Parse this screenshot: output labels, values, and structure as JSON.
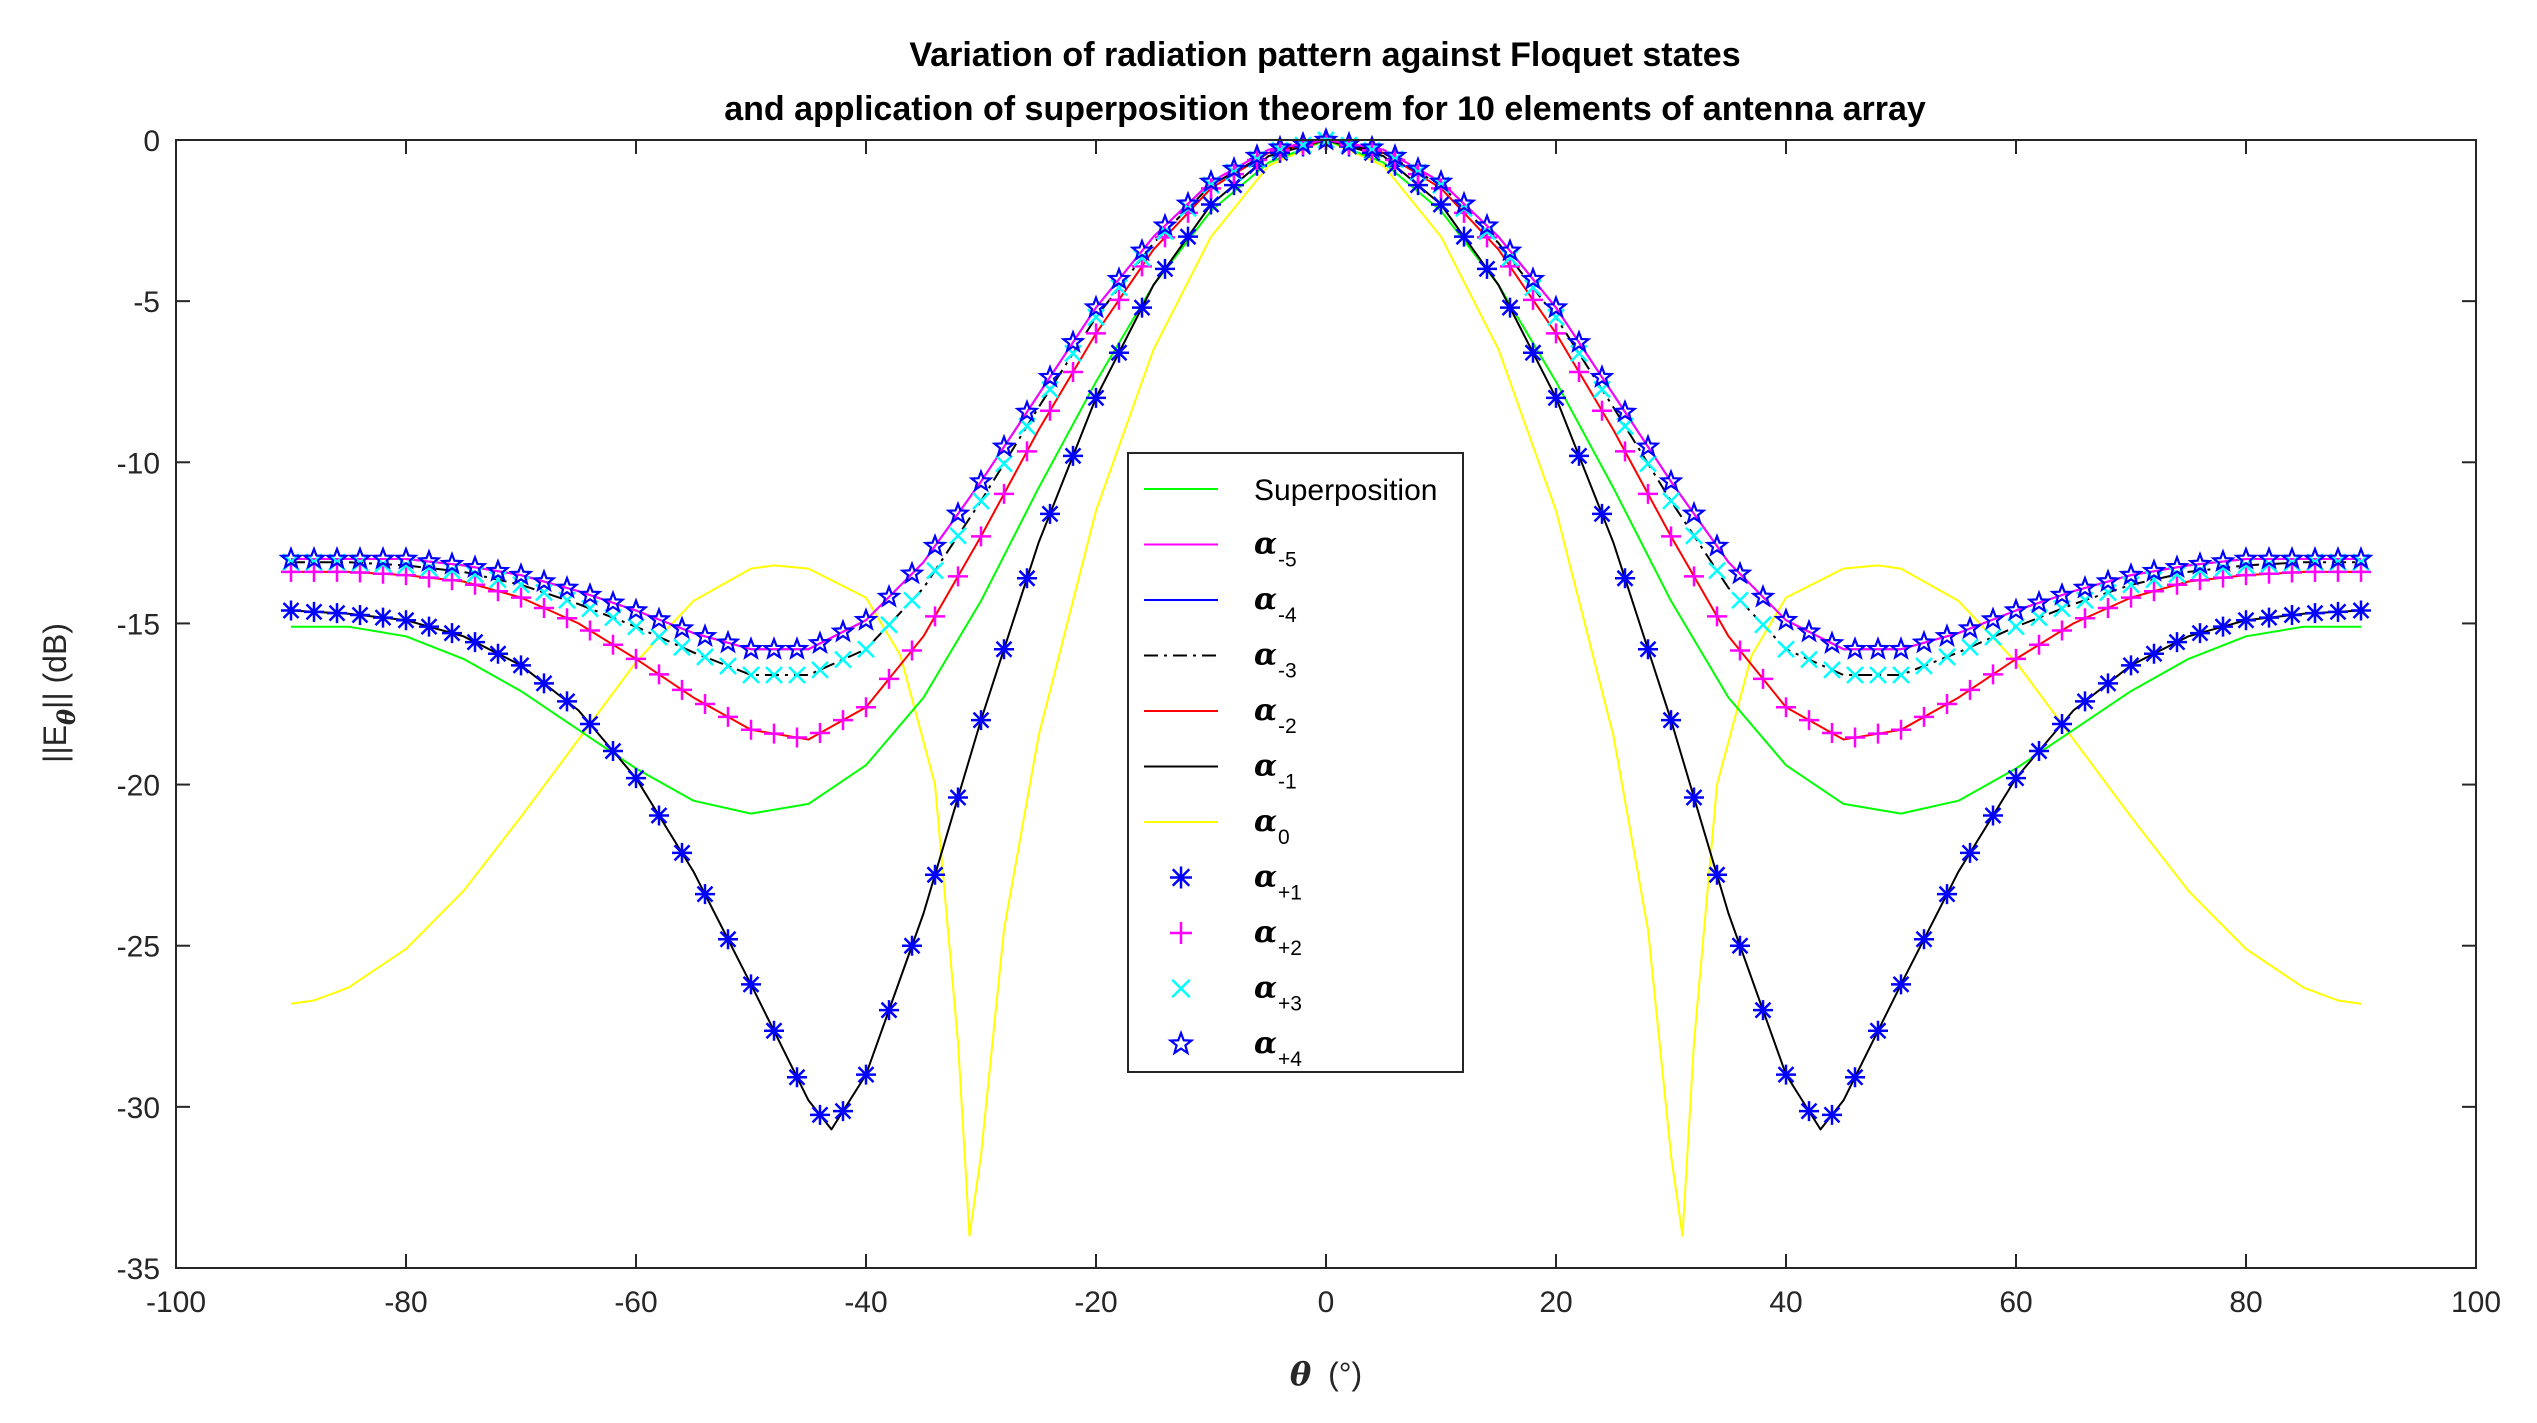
{
  "chart_data": {
    "type": "line",
    "title": [
      "Variation of radiation pattern against Floquet states",
      "and application of superposition theorem for 10 elements of antenna array"
    ],
    "xlabel": {
      "symbol": "θ",
      "unit": "(°)"
    },
    "ylabel": {
      "prefix": "||E",
      "subscript": "θ",
      "suffix": "|| (dB)"
    },
    "xlim": [
      -100,
      100
    ],
    "ylim": [
      -35,
      0
    ],
    "xticks": [
      -100,
      -80,
      -60,
      -40,
      -20,
      0,
      20,
      40,
      60,
      80,
      100
    ],
    "yticks": [
      0,
      -5,
      -10,
      -15,
      -20,
      -25,
      -30,
      -35
    ],
    "grid": false,
    "legend_position": "center",
    "series": [
      {
        "name": "Superposition",
        "label_type": "text",
        "color": "#00ff00",
        "style": "solid",
        "marker": "none",
        "points": [
          [
            0,
            0
          ],
          [
            5,
            -0.7
          ],
          [
            10,
            -2.2
          ],
          [
            15,
            -4.5
          ],
          [
            20,
            -7.5
          ],
          [
            25,
            -10.8
          ],
          [
            30,
            -14.3
          ],
          [
            35,
            -17.3
          ],
          [
            40,
            -19.4
          ],
          [
            45,
            -20.6
          ],
          [
            50,
            -20.9
          ],
          [
            55,
            -20.5
          ],
          [
            60,
            -19.5
          ],
          [
            65,
            -18.3
          ],
          [
            70,
            -17.1
          ],
          [
            75,
            -16.1
          ],
          [
            80,
            -15.4
          ],
          [
            85,
            -15.1
          ],
          [
            90,
            -15.1
          ]
        ]
      },
      {
        "name": "α",
        "sub": "-5",
        "label_type": "symbol",
        "color": "#ff00ff",
        "style": "solid",
        "marker": "none",
        "points": [
          [
            0,
            0
          ],
          [
            5,
            -0.3
          ],
          [
            10,
            -1.3
          ],
          [
            15,
            -3.0
          ],
          [
            20,
            -5.2
          ],
          [
            25,
            -7.9
          ],
          [
            30,
            -10.6
          ],
          [
            35,
            -13.1
          ],
          [
            40,
            -14.9
          ],
          [
            45,
            -15.8
          ],
          [
            50,
            -15.8
          ],
          [
            55,
            -15.3
          ],
          [
            60,
            -14.6
          ],
          [
            65,
            -14.0
          ],
          [
            70,
            -13.5
          ],
          [
            75,
            -13.2
          ],
          [
            80,
            -13.0
          ],
          [
            85,
            -13.0
          ],
          [
            90,
            -13.0
          ]
        ]
      },
      {
        "name": "α",
        "sub": "-4",
        "label_type": "symbol",
        "color": "#0000ff",
        "style": "solid",
        "marker": "none",
        "points": [
          [
            0,
            0
          ],
          [
            5,
            -0.3
          ],
          [
            10,
            -1.3
          ],
          [
            15,
            -3.0
          ],
          [
            20,
            -5.2
          ],
          [
            25,
            -7.9
          ],
          [
            30,
            -10.6
          ],
          [
            35,
            -13.1
          ],
          [
            40,
            -14.9
          ],
          [
            45,
            -15.8
          ],
          [
            50,
            -15.8
          ],
          [
            55,
            -15.3
          ],
          [
            60,
            -14.6
          ],
          [
            65,
            -14.0
          ],
          [
            70,
            -13.5
          ],
          [
            75,
            -13.2
          ],
          [
            80,
            -13.0
          ],
          [
            85,
            -13.0
          ],
          [
            90,
            -13.0
          ]
        ]
      },
      {
        "name": "α",
        "sub": "-3",
        "label_type": "symbol",
        "color": "#000000",
        "style": "dashdot",
        "marker": "none",
        "points": [
          [
            0,
            0
          ],
          [
            5,
            -0.4
          ],
          [
            10,
            -1.4
          ],
          [
            15,
            -3.2
          ],
          [
            20,
            -5.5
          ],
          [
            25,
            -8.3
          ],
          [
            30,
            -11.2
          ],
          [
            35,
            -13.9
          ],
          [
            40,
            -15.8
          ],
          [
            45,
            -16.6
          ],
          [
            50,
            -16.6
          ],
          [
            55,
            -15.9
          ],
          [
            60,
            -15.1
          ],
          [
            65,
            -14.4
          ],
          [
            70,
            -13.8
          ],
          [
            75,
            -13.4
          ],
          [
            80,
            -13.2
          ],
          [
            85,
            -13.1
          ],
          [
            90,
            -13.1
          ]
        ]
      },
      {
        "name": "α",
        "sub": "-2",
        "label_type": "symbol",
        "color": "#ff0000",
        "style": "solid",
        "marker": "none",
        "points": [
          [
            0,
            0
          ],
          [
            5,
            -0.4
          ],
          [
            10,
            -1.5
          ],
          [
            15,
            -3.4
          ],
          [
            20,
            -6.0
          ],
          [
            25,
            -9.0
          ],
          [
            30,
            -12.3
          ],
          [
            35,
            -15.4
          ],
          [
            40,
            -17.6
          ],
          [
            45,
            -18.6
          ],
          [
            50,
            -18.3
          ],
          [
            55,
            -17.3
          ],
          [
            60,
            -16.1
          ],
          [
            65,
            -15.0
          ],
          [
            70,
            -14.2
          ],
          [
            75,
            -13.7
          ],
          [
            80,
            -13.5
          ],
          [
            85,
            -13.4
          ],
          [
            90,
            -13.4
          ]
        ]
      },
      {
        "name": "α",
        "sub": "-1",
        "label_type": "symbol",
        "color": "#000000",
        "style": "solid",
        "marker": "none",
        "points": [
          [
            0,
            0
          ],
          [
            5,
            -0.5
          ],
          [
            10,
            -2.0
          ],
          [
            15,
            -4.5
          ],
          [
            20,
            -8.0
          ],
          [
            25,
            -12.5
          ],
          [
            30,
            -18.0
          ],
          [
            35,
            -24.0
          ],
          [
            40,
            -29.0
          ],
          [
            43,
            -30.7
          ],
          [
            45,
            -29.8
          ],
          [
            50,
            -26.2
          ],
          [
            55,
            -22.7
          ],
          [
            60,
            -19.8
          ],
          [
            65,
            -17.7
          ],
          [
            70,
            -16.3
          ],
          [
            75,
            -15.4
          ],
          [
            80,
            -14.9
          ],
          [
            85,
            -14.7
          ],
          [
            90,
            -14.6
          ]
        ]
      },
      {
        "name": "α",
        "sub": "0",
        "label_type": "symbol",
        "color": "#ffff00",
        "style": "solid",
        "marker": "none",
        "points": [
          [
            0,
            0
          ],
          [
            5,
            -0.8
          ],
          [
            10,
            -3.0
          ],
          [
            15,
            -6.5
          ],
          [
            20,
            -11.5
          ],
          [
            25,
            -18.5
          ],
          [
            28,
            -24.5
          ],
          [
            30,
            -31.5
          ],
          [
            31,
            -34.0
          ],
          [
            32,
            -28.0
          ],
          [
            34,
            -20.0
          ],
          [
            37,
            -16.0
          ],
          [
            40,
            -14.2
          ],
          [
            45,
            -13.3
          ],
          [
            48,
            -13.2
          ],
          [
            50,
            -13.3
          ],
          [
            55,
            -14.3
          ],
          [
            60,
            -16.2
          ],
          [
            65,
            -18.6
          ],
          [
            70,
            -21.0
          ],
          [
            75,
            -23.3
          ],
          [
            80,
            -25.1
          ],
          [
            85,
            -26.3
          ],
          [
            88,
            -26.7
          ],
          [
            90,
            -26.8
          ]
        ]
      },
      {
        "name": "α",
        "sub": "+1",
        "label_type": "symbol",
        "color": "#0000ff",
        "style": "none",
        "marker": "asterisk",
        "points": [
          [
            0,
            0
          ],
          [
            5,
            -0.5
          ],
          [
            10,
            -2.0
          ],
          [
            15,
            -4.5
          ],
          [
            20,
            -8.0
          ],
          [
            25,
            -12.5
          ],
          [
            30,
            -18.0
          ],
          [
            35,
            -24.0
          ],
          [
            40,
            -29.0
          ],
          [
            43,
            -30.7
          ],
          [
            45,
            -29.8
          ],
          [
            50,
            -26.2
          ],
          [
            55,
            -22.7
          ],
          [
            60,
            -19.8
          ],
          [
            65,
            -17.7
          ],
          [
            70,
            -16.3
          ],
          [
            75,
            -15.4
          ],
          [
            80,
            -14.9
          ],
          [
            85,
            -14.7
          ],
          [
            90,
            -14.6
          ]
        ]
      },
      {
        "name": "α",
        "sub": "+2",
        "label_type": "symbol",
        "color": "#ff00ff",
        "style": "none",
        "marker": "plus",
        "points": [
          [
            0,
            0
          ],
          [
            5,
            -0.4
          ],
          [
            10,
            -1.5
          ],
          [
            15,
            -3.4
          ],
          [
            20,
            -6.0
          ],
          [
            25,
            -9.0
          ],
          [
            30,
            -12.3
          ],
          [
            35,
            -15.4
          ],
          [
            40,
            -17.6
          ],
          [
            45,
            -18.6
          ],
          [
            50,
            -18.3
          ],
          [
            55,
            -17.3
          ],
          [
            60,
            -16.1
          ],
          [
            65,
            -15.0
          ],
          [
            70,
            -14.2
          ],
          [
            75,
            -13.7
          ],
          [
            80,
            -13.5
          ],
          [
            85,
            -13.4
          ],
          [
            90,
            -13.4
          ]
        ]
      },
      {
        "name": "α",
        "sub": "+3",
        "label_type": "symbol",
        "color": "#00ffff",
        "style": "none",
        "marker": "x",
        "points": [
          [
            0,
            0
          ],
          [
            5,
            -0.4
          ],
          [
            10,
            -1.4
          ],
          [
            15,
            -3.2
          ],
          [
            20,
            -5.5
          ],
          [
            25,
            -8.3
          ],
          [
            30,
            -11.2
          ],
          [
            35,
            -13.9
          ],
          [
            40,
            -15.8
          ],
          [
            45,
            -16.6
          ],
          [
            50,
            -16.6
          ],
          [
            55,
            -15.9
          ],
          [
            60,
            -15.1
          ],
          [
            65,
            -14.4
          ],
          [
            70,
            -13.8
          ],
          [
            75,
            -13.4
          ],
          [
            80,
            -13.2
          ],
          [
            85,
            -13.1
          ],
          [
            90,
            -13.1
          ]
        ]
      },
      {
        "name": "α",
        "sub": "+4",
        "label_type": "symbol",
        "color": "#0000ff",
        "style": "none",
        "marker": "star",
        "points": [
          [
            0,
            0
          ],
          [
            5,
            -0.3
          ],
          [
            10,
            -1.3
          ],
          [
            15,
            -3.0
          ],
          [
            20,
            -5.2
          ],
          [
            25,
            -7.9
          ],
          [
            30,
            -10.6
          ],
          [
            35,
            -13.1
          ],
          [
            40,
            -14.9
          ],
          [
            45,
            -15.8
          ],
          [
            50,
            -15.8
          ],
          [
            55,
            -15.3
          ],
          [
            60,
            -14.6
          ],
          [
            65,
            -14.0
          ],
          [
            70,
            -13.5
          ],
          [
            75,
            -13.2
          ],
          [
            80,
            -13.0
          ],
          [
            85,
            -13.0
          ],
          [
            90,
            -13.0
          ]
        ]
      }
    ]
  }
}
